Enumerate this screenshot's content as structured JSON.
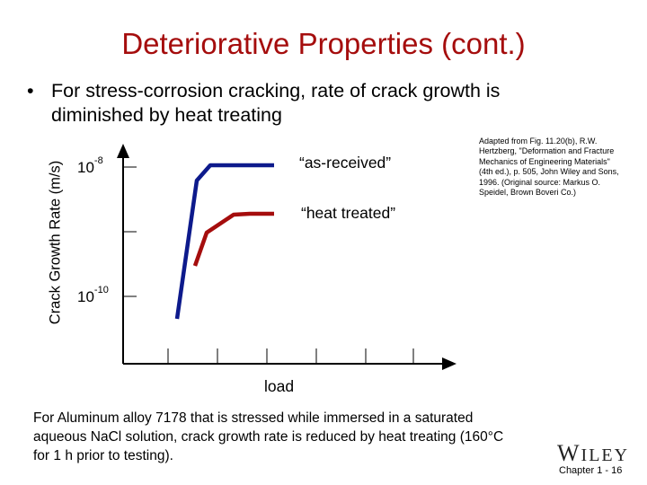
{
  "title": "Deteriorative Properties (cont.)",
  "bullet": {
    "symbol": "•",
    "text": "For stress-corrosion cracking, rate of crack growth is diminished by heat treating"
  },
  "chart_data": {
    "type": "line",
    "ylabel": "Crack Growth Rate (m/s)",
    "xlabel": "load",
    "y_ticks": [
      {
        "base": "10",
        "exp": "-8"
      },
      {
        "base": "10",
        "exp": "-10"
      }
    ],
    "series": [
      {
        "name": "“as-received”",
        "color": "#0d1a8c"
      },
      {
        "name": "“heat treated”",
        "color": "#a50d0d"
      }
    ],
    "axis_color": "#000000",
    "grid": false
  },
  "credit": "Adapted from Fig. 11.20(b), R.W. Hertzberg, \"Deformation and Fracture Mechanics of Engineering Materials\" (4th ed.), p. 505, John Wiley and Sons, 1996. (Original source: Markus O. Speidel, Brown Boveri Co.)",
  "caption": "For Aluminum alloy 7178 that is stressed while immersed in a saturated aqueous NaCl solution, crack growth rate is reduced by heat treating (160°C for 1 h prior to testing).",
  "logo": {
    "text_big": "W",
    "text_rest": "ILEY"
  },
  "footer": {
    "slide_number": "Chapter 1 - 16"
  }
}
